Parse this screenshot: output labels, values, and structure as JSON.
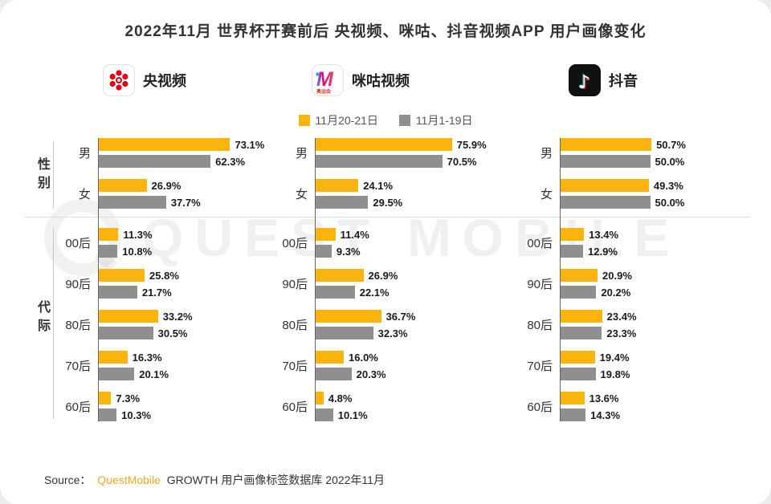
{
  "title": "2022年11月 世界杯开赛前后 央视频、咪咕、抖音视频APP 用户画像变化",
  "watermark": "QUEST MOBILE",
  "legend": {
    "series1": "11月20-21日",
    "series2": "11月1-19日"
  },
  "colors": {
    "series1": "#FBB40E",
    "series2": "#8F8F8F",
    "brand_orange": "#F5A623",
    "cctv_red": "#E60012",
    "migu_pink": "#E4007F",
    "migu_blue": "#2BA7E0",
    "douyin_black": "#111111",
    "douyin_cyan": "#25F4EE",
    "douyin_red": "#FE2C55"
  },
  "sections": {
    "gender": "性别",
    "generation": "代际"
  },
  "apps": [
    {
      "name": "央视频",
      "icon": "cctv-video-app-icon"
    },
    {
      "name": "咪咕视频",
      "icon": "migu-video-app-icon",
      "icon_caption": "奥运会"
    },
    {
      "name": "抖音",
      "icon": "douyin-app-icon"
    }
  ],
  "source": {
    "prefix": "Source：",
    "brand": "QuestMobile",
    "rest": "GROWTH 用户画像标签数据库 2022年11月"
  },
  "chart_data": [
    {
      "type": "bar",
      "title": "央视频",
      "orientation": "horizontal",
      "categories": [
        "男",
        "女",
        "00后",
        "90后",
        "80后",
        "70后",
        "60后"
      ],
      "series": [
        {
          "name": "11月20-21日",
          "values": [
            73.1,
            26.9,
            11.3,
            25.8,
            33.2,
            16.3,
            7.3
          ]
        },
        {
          "name": "11月1-19日",
          "values": [
            62.3,
            37.7,
            10.8,
            21.7,
            30.5,
            20.1,
            10.3
          ]
        }
      ],
      "value_suffix": "%",
      "xlim": [
        0,
        100
      ],
      "grid": false,
      "legend_position": "top-center"
    },
    {
      "type": "bar",
      "title": "咪咕视频",
      "orientation": "horizontal",
      "categories": [
        "男",
        "女",
        "00后",
        "90后",
        "80后",
        "70后",
        "60后"
      ],
      "series": [
        {
          "name": "11月20-21日",
          "values": [
            75.9,
            24.1,
            11.4,
            26.9,
            36.7,
            16.0,
            4.8
          ]
        },
        {
          "name": "11月1-19日",
          "values": [
            70.5,
            29.5,
            9.3,
            22.1,
            32.3,
            20.3,
            10.1
          ]
        }
      ],
      "value_suffix": "%",
      "xlim": [
        0,
        100
      ],
      "grid": false,
      "legend_position": "top-center"
    },
    {
      "type": "bar",
      "title": "抖音",
      "orientation": "horizontal",
      "categories": [
        "男",
        "女",
        "00后",
        "90后",
        "80后",
        "70后",
        "60后"
      ],
      "series": [
        {
          "name": "11月20-21日",
          "values": [
            50.7,
            49.3,
            13.4,
            20.9,
            23.4,
            19.4,
            13.6
          ]
        },
        {
          "name": "11月1-19日",
          "values": [
            50.0,
            50.0,
            12.9,
            20.2,
            23.3,
            19.8,
            14.3
          ]
        }
      ],
      "value_suffix": "%",
      "xlim": [
        0,
        100
      ],
      "grid": false,
      "legend_position": "top-center"
    }
  ]
}
